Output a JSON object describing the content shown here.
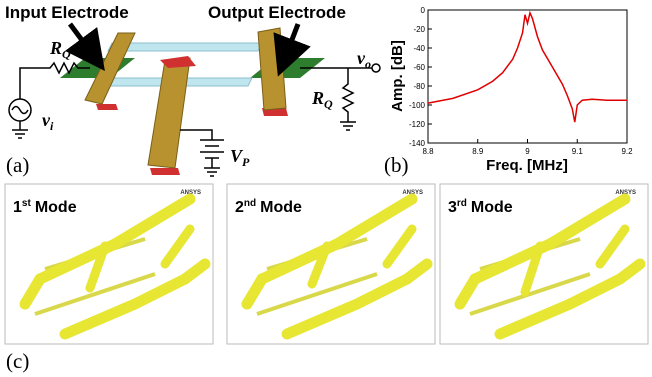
{
  "panel_a": {
    "label": "(a)",
    "input_electrode": "Input Electrode",
    "output_electrode": "Output Electrode",
    "r_input": {
      "main": "R",
      "sub": "Q"
    },
    "r_output": {
      "main": "R",
      "sub": "Q"
    },
    "v_in": {
      "main": "v",
      "sub": "i"
    },
    "v_out": {
      "main": "v",
      "sub": "o"
    },
    "v_bias": {
      "main": "V",
      "sub": "P"
    }
  },
  "panel_b": {
    "label": "(b)",
    "chart_data": {
      "type": "line",
      "xlabel": "Freq. [MHz]",
      "ylabel": "Amp. [dB]",
      "x": [
        8.8,
        8.85,
        8.9,
        8.93,
        8.95,
        8.97,
        8.98,
        8.99,
        8.995,
        9.0,
        9.005,
        9.01,
        9.02,
        9.03,
        9.05,
        9.07,
        9.08,
        9.09,
        9.095,
        9.1,
        9.11,
        9.13,
        9.16,
        9.2
      ],
      "values": [
        -98,
        -93,
        -84,
        -75,
        -66,
        -52,
        -40,
        -24,
        -5,
        -14,
        -3,
        -9,
        -28,
        -42,
        -60,
        -78,
        -90,
        -104,
        -118,
        -100,
        -95,
        -94,
        -95,
        -95
      ],
      "color": "#e00000",
      "xlim": [
        8.8,
        9.2
      ],
      "xticks": [
        8.8,
        8.9,
        9,
        9.1,
        9.2
      ],
      "ylim": [
        -140,
        0
      ],
      "yticks": [
        0,
        -20,
        -40,
        -60,
        -80,
        -100,
        -120,
        -140
      ]
    }
  },
  "panel_c": {
    "label": "(c)",
    "logo": "ANSYS",
    "modes": [
      {
        "number": "1",
        "suffix": "st",
        "word": "Mode"
      },
      {
        "number": "2",
        "suffix": "nd",
        "word": "Mode"
      },
      {
        "number": "3",
        "suffix": "rd",
        "word": "Mode"
      }
    ]
  }
}
